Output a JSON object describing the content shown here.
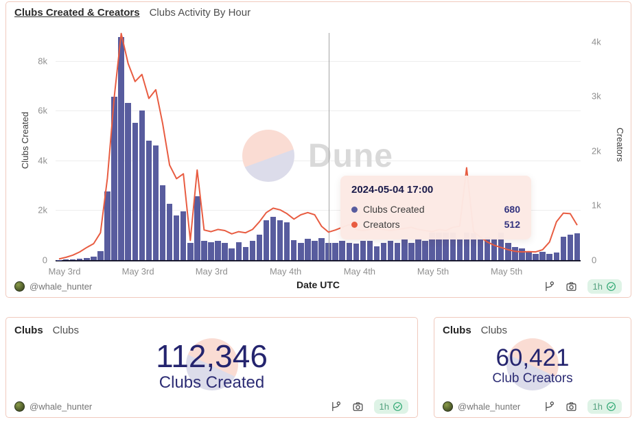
{
  "chart_widget": {
    "title": "Clubs Created & Creators",
    "subtitle": "Clubs Activity By Hour",
    "watermark": "Dune",
    "footer": {
      "handle": "@whale_hunter",
      "refresh_label": "1h",
      "icons": [
        "fork-icon",
        "camera-icon",
        "check-circle-icon"
      ]
    }
  },
  "tooltip": {
    "title": "2024-05-04 17:00",
    "rows": [
      {
        "label": "Clubs Created",
        "value": "680",
        "color": "#585c9e"
      },
      {
        "label": "Creators",
        "value": "512",
        "color": "#e85c41"
      }
    ]
  },
  "chart_data": {
    "type": "bar+line",
    "title": "Clubs Activity By Hour",
    "xlabel": "Date UTC",
    "x_ticks": [
      {
        "label": "May 3rd",
        "f": 0.017
      },
      {
        "label": "May 3rd",
        "f": 0.157
      },
      {
        "label": "May 3rd",
        "f": 0.297
      },
      {
        "label": "May 4th",
        "f": 0.438
      },
      {
        "label": "May 4th",
        "f": 0.579
      },
      {
        "label": "May 5th",
        "f": 0.719
      },
      {
        "label": "May 5th",
        "f": 0.859
      }
    ],
    "left_axis": {
      "label": "Clubs Created",
      "max": 9120,
      "ticks": [
        {
          "label": "0",
          "value": 0
        },
        {
          "label": "2k",
          "value": 2000
        },
        {
          "label": "4k",
          "value": 4000
        },
        {
          "label": "6k",
          "value": 6000
        },
        {
          "label": "8k",
          "value": 8000
        }
      ]
    },
    "right_axis": {
      "label": "Creators",
      "max": 4160,
      "ticks": [
        {
          "label": "0",
          "value": 0
        },
        {
          "label": "1k",
          "value": 1000
        },
        {
          "label": "2k",
          "value": 2000
        },
        {
          "label": "3k",
          "value": 3000
        },
        {
          "label": "4k",
          "value": 4000
        }
      ]
    },
    "crosshair_index": 39,
    "series": [
      {
        "name": "Clubs Created",
        "type": "bar",
        "axis": "left",
        "color": "#585c9e",
        "values": [
          10,
          20,
          30,
          50,
          80,
          150,
          350,
          2750,
          6550,
          8950,
          6300,
          5500,
          6000,
          4800,
          4600,
          3000,
          2270,
          1790,
          1970,
          700,
          2550,
          780,
          720,
          760,
          690,
          470,
          710,
          530,
          780,
          1010,
          1610,
          1730,
          1600,
          1510,
          800,
          690,
          850,
          780,
          870,
          680,
          690,
          760,
          690,
          650,
          780,
          780,
          560,
          690,
          780,
          690,
          830,
          690,
          890,
          780,
          1100,
          1100,
          1100,
          1100,
          830,
          1100,
          1080,
          830,
          920,
          870,
          1100,
          690,
          530,
          470,
          350,
          260,
          330,
          260,
          290,
          950,
          1010,
          1070
        ]
      },
      {
        "name": "Creators",
        "type": "line",
        "axis": "right",
        "color": "#e85c41",
        "values": [
          20,
          50,
          90,
          150,
          230,
          300,
          500,
          1500,
          3000,
          4150,
          3600,
          3270,
          3400,
          2960,
          3120,
          2500,
          1740,
          1490,
          1580,
          360,
          1650,
          550,
          520,
          560,
          540,
          480,
          520,
          500,
          560,
          700,
          870,
          950,
          920,
          850,
          750,
          830,
          870,
          830,
          620,
          512,
          550,
          600,
          650,
          560,
          540,
          560,
          580,
          560,
          540,
          560,
          580,
          600,
          560,
          540,
          520,
          560,
          540,
          600,
          620,
          1690,
          520,
          420,
          330,
          270,
          230,
          190,
          160,
          150,
          155,
          150,
          190,
          330,
          700,
          860,
          850,
          640
        ]
      }
    ]
  },
  "counters": [
    {
      "header_title": "Clubs",
      "header_subtitle": "Clubs",
      "value": "112,346",
      "label": "Clubs Created",
      "handle": "@whale_hunter",
      "refresh_label": "1h"
    },
    {
      "header_title": "Clubs",
      "header_subtitle": "Clubs",
      "value": "60,421",
      "label": "Club Creators",
      "handle": "@whale_hunter",
      "refresh_label": "1h"
    }
  ],
  "colors": {
    "bar": "#585c9e",
    "line": "#e85c41",
    "panel_border": "#f0c9bd",
    "tooltip_bg": "#fce9e4",
    "counter_text": "#24246e",
    "badge_bg": "#def3e6",
    "badge_text": "#53a17e"
  }
}
